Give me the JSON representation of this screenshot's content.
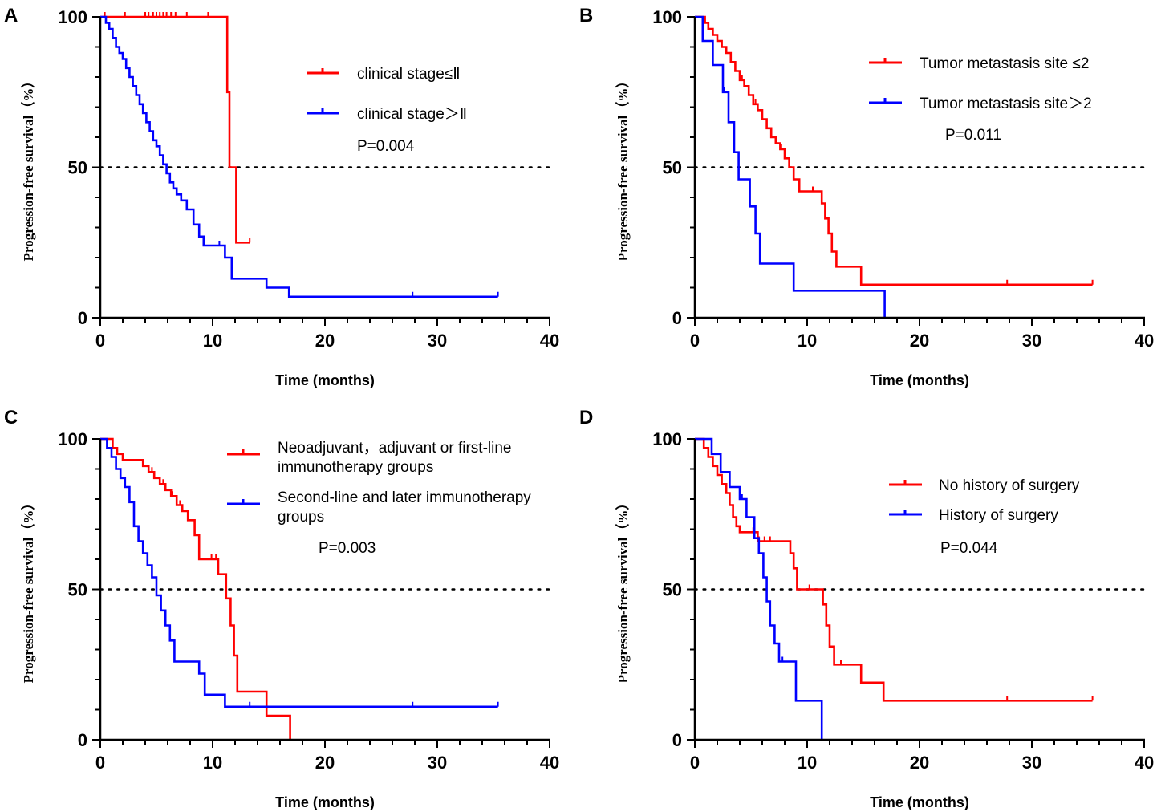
{
  "chart_data": [
    {
      "type": "line",
      "panel_label": "A",
      "xlabel": "Time (months)",
      "ylabel": "Progression-free survival（%）",
      "xlim": [
        0,
        40
      ],
      "ylim": [
        0,
        100
      ],
      "xticks": [
        "0",
        "10",
        "20",
        "30",
        "40"
      ],
      "yticks": [
        "0",
        "50",
        "100"
      ],
      "reference_y": 50,
      "p_value": "P=0.004",
      "series": [
        {
          "name": "clinical stage≤Ⅱ",
          "color": "#ff0000",
          "x": [
            0,
            11.3,
            11.3,
            11.5,
            11.5,
            12.1,
            12.1,
            13.3
          ],
          "y": [
            100,
            100,
            75,
            75,
            50,
            50,
            25,
            25
          ],
          "censor_x": [
            0.4,
            2.2,
            4,
            4.3,
            4.7,
            5,
            5.3,
            5.6,
            5.9,
            6.3,
            6.7,
            7.7,
            9.6,
            13.3
          ]
        },
        {
          "name": "clinical stage＞Ⅱ",
          "color": "#0000ff",
          "x": [
            0,
            0.5,
            0.8,
            1.1,
            1.4,
            1.7,
            2.0,
            2.3,
            2.6,
            2.9,
            3.2,
            3.5,
            3.8,
            4.1,
            4.4,
            4.7,
            5.0,
            5.3,
            5.6,
            5.9,
            6.2,
            6.5,
            6.8,
            7.2,
            7.7,
            8.3,
            8.8,
            9.2,
            9.7,
            10.1,
            11.1,
            11.7,
            14.8,
            16.8,
            35.4
          ],
          "y": [
            100,
            98,
            96,
            93,
            90,
            88,
            86,
            83,
            80,
            77,
            74,
            71,
            68,
            65,
            62,
            59,
            57,
            54,
            51,
            48,
            45,
            43,
            41,
            39,
            36,
            31,
            27,
            24,
            24,
            24,
            20,
            13,
            10,
            7,
            7
          ],
          "censor_x": [
            10.6,
            27.8,
            35.4
          ]
        }
      ]
    },
    {
      "type": "line",
      "panel_label": "B",
      "xlabel": "Time (months)",
      "ylabel": "Progression-free survival（%）",
      "xlim": [
        0,
        40
      ],
      "ylim": [
        0,
        100
      ],
      "xticks": [
        "0",
        "10",
        "20",
        "30",
        "40"
      ],
      "yticks": [
        "0",
        "50",
        "100"
      ],
      "reference_y": 50,
      "p_value": "P=0.011",
      "series": [
        {
          "name": "Tumor metastasis site ≤2",
          "color": "#ff0000",
          "x": [
            0,
            0.9,
            1.2,
            1.6,
            2.0,
            2.4,
            2.8,
            3.2,
            3.6,
            4.0,
            4.4,
            4.8,
            5.2,
            5.6,
            6.0,
            6.4,
            6.8,
            7.2,
            7.6,
            8.0,
            8.4,
            8.8,
            9.3,
            9.8,
            11.3,
            11.6,
            11.9,
            12.2,
            12.6,
            14.8,
            35.4
          ],
          "y": [
            100,
            98,
            96,
            94,
            92,
            90,
            88,
            85,
            82,
            79,
            77,
            74,
            71,
            69,
            66,
            63,
            60,
            58,
            56,
            53,
            50,
            46,
            42,
            42,
            38,
            33,
            28,
            22,
            17,
            11,
            11
          ],
          "censor_x": [
            4.2,
            5.4,
            7.7,
            10.5,
            27.8,
            35.4
          ]
        },
        {
          "name": "Tumor metastasis site＞2",
          "color": "#0000ff",
          "x": [
            0,
            0.7,
            1.6,
            2.5,
            3.0,
            3.5,
            3.9,
            4.9,
            5.4,
            5.8,
            8.8,
            16.9,
            16.9
          ],
          "y": [
            100,
            92,
            84,
            75,
            65,
            55,
            46,
            37,
            28,
            18,
            9,
            9,
            0
          ],
          "censor_x": [
            2.6
          ]
        }
      ]
    },
    {
      "type": "line",
      "panel_label": "C",
      "xlabel": "Time (months)",
      "ylabel": "Progression-free survival（%）",
      "xlim": [
        0,
        40
      ],
      "ylim": [
        0,
        100
      ],
      "xticks": [
        "0",
        "10",
        "20",
        "30",
        "40"
      ],
      "yticks": [
        "0",
        "50",
        "100"
      ],
      "reference_y": 50,
      "p_value": "P=0.003",
      "series": [
        {
          "name": "Neoadjuvant, adjuvant or first-line immunotherapy groups",
          "legend_lines": [
            "Neoadjuvant，adjuvant  or first-line",
            "immunotherapy groups"
          ],
          "color": "#ff0000",
          "x": [
            0,
            1.1,
            1.5,
            2.0,
            3.8,
            4.3,
            4.8,
            5.3,
            5.8,
            6.3,
            6.8,
            7.3,
            7.8,
            8.4,
            8.8,
            10.5,
            11.2,
            11.6,
            11.9,
            12.2,
            14.8,
            16.9,
            16.9
          ],
          "y": [
            100,
            97,
            95,
            93,
            91,
            89,
            87,
            85,
            83,
            81,
            78,
            76,
            73,
            68,
            60,
            55,
            47,
            38,
            28,
            16,
            8,
            8,
            0
          ],
          "censor_x": [
            4.6,
            5.6,
            6.4,
            7.1,
            9.9,
            10.3
          ]
        },
        {
          "name": "Second-line and later immunotherapy groups",
          "legend_lines": [
            "Second-line and later immunotherapy",
            "groups"
          ],
          "color": "#0000ff",
          "x": [
            0,
            0.6,
            1.0,
            1.4,
            1.8,
            2.2,
            2.6,
            3.0,
            3.4,
            3.8,
            4.2,
            4.6,
            5.0,
            5.4,
            5.8,
            6.2,
            6.6,
            8.8,
            9.3,
            11.1,
            35.4
          ],
          "y": [
            100,
            97,
            94,
            90,
            87,
            84,
            79,
            71,
            66,
            62,
            58,
            54,
            48,
            43,
            38,
            33,
            26,
            22,
            15,
            11,
            11
          ],
          "censor_x": [
            13.3,
            27.8,
            35.4
          ]
        }
      ]
    },
    {
      "type": "line",
      "panel_label": "D",
      "xlabel": "Time (months)",
      "ylabel": "Progression-free survival（%）",
      "xlim": [
        0,
        40
      ],
      "ylim": [
        0,
        100
      ],
      "xticks": [
        "0",
        "10",
        "20",
        "30",
        "40"
      ],
      "yticks": [
        "0",
        "50",
        "100"
      ],
      "reference_y": 50,
      "p_value": "P=0.044",
      "series": [
        {
          "name": "No history of surgery",
          "color": "#ff0000",
          "x": [
            0,
            0.8,
            1.2,
            1.6,
            2.0,
            2.4,
            2.8,
            3.1,
            3.4,
            3.7,
            4.0,
            4.5,
            5.6,
            8.2,
            8.5,
            8.8,
            9.1,
            11.1,
            11.4,
            11.7,
            12.0,
            12.4,
            14.8,
            16.8,
            35.4
          ],
          "y": [
            100,
            97,
            94,
            91,
            88,
            85,
            82,
            78,
            74,
            71,
            69,
            69,
            66,
            66,
            62,
            57,
            50,
            50,
            45,
            38,
            31,
            25,
            19,
            13,
            13
          ],
          "censor_x": [
            5.2,
            5.7,
            6.2,
            6.7,
            10.2,
            13.0,
            27.8,
            35.4
          ]
        },
        {
          "name": "History of surgery",
          "color": "#0000ff",
          "x": [
            0,
            1.5,
            2.3,
            3.1,
            3.6,
            4.0,
            4.6,
            5.3,
            5.7,
            6.1,
            6.4,
            6.7,
            7.1,
            7.5,
            9.0,
            11.3,
            11.3
          ],
          "y": [
            100,
            95,
            89,
            84,
            84,
            80,
            74,
            67,
            62,
            54,
            46,
            38,
            32,
            26,
            13,
            13,
            0
          ],
          "censor_x": [
            4.2,
            7.8
          ]
        }
      ]
    }
  ]
}
